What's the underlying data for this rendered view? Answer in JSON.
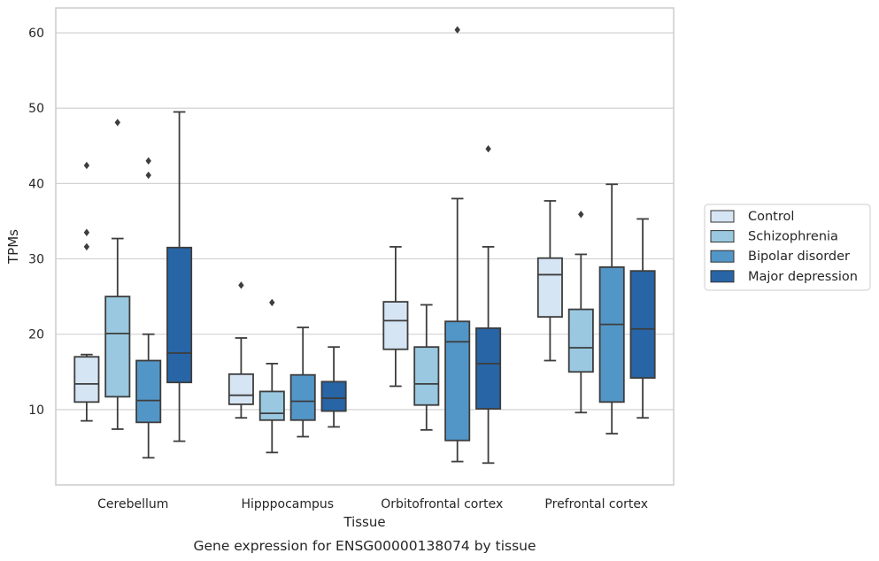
{
  "chart_data": {
    "type": "box",
    "xlabel": "Tissue",
    "ylabel": "TPMs",
    "caption": "Gene expression for ENSG00000138074 by tissue",
    "ylim": [
      0,
      63.3
    ],
    "yticks": [
      10,
      20,
      30,
      40,
      50,
      60
    ],
    "grid": "horizontal",
    "legend_position": "right",
    "categories": [
      "Cerebellum",
      "Hipppocampus",
      "Orbitofrontal cortex",
      "Prefrontal cortex"
    ],
    "series": [
      {
        "name": "Control",
        "color": "#d6e5f4",
        "boxes": [
          {
            "whisker_low": 8.5,
            "q1": 11.0,
            "median": 13.4,
            "q3": 17.0,
            "whisker_high": 17.3,
            "outliers": [
              31.6,
              33.5,
              42.4
            ]
          },
          {
            "whisker_low": 8.9,
            "q1": 10.7,
            "median": 11.9,
            "q3": 14.7,
            "whisker_high": 19.5,
            "outliers": [
              26.5
            ]
          },
          {
            "whisker_low": 13.1,
            "q1": 18.0,
            "median": 21.8,
            "q3": 24.3,
            "whisker_high": 31.6,
            "outliers": []
          },
          {
            "whisker_low": 16.5,
            "q1": 22.3,
            "median": 27.9,
            "q3": 30.1,
            "whisker_high": 37.7,
            "outliers": []
          }
        ]
      },
      {
        "name": "Schizophrenia",
        "color": "#9ac8e0",
        "boxes": [
          {
            "whisker_low": 7.4,
            "q1": 11.7,
            "median": 20.1,
            "q3": 25.0,
            "whisker_high": 32.7,
            "outliers": [
              48.1
            ]
          },
          {
            "whisker_low": 4.3,
            "q1": 8.6,
            "median": 9.5,
            "q3": 12.4,
            "whisker_high": 16.1,
            "outliers": [
              24.2
            ]
          },
          {
            "whisker_low": 7.3,
            "q1": 10.6,
            "median": 13.4,
            "q3": 18.3,
            "whisker_high": 23.9,
            "outliers": []
          },
          {
            "whisker_low": 9.6,
            "q1": 15.0,
            "median": 18.2,
            "q3": 23.3,
            "whisker_high": 30.6,
            "outliers": [
              35.9
            ]
          }
        ]
      },
      {
        "name": "Bipolar disorder",
        "color": "#5296c7",
        "boxes": [
          {
            "whisker_low": 3.6,
            "q1": 8.3,
            "median": 11.2,
            "q3": 16.5,
            "whisker_high": 20.0,
            "outliers": [
              41.1,
              43.0
            ]
          },
          {
            "whisker_low": 6.4,
            "q1": 8.6,
            "median": 11.1,
            "q3": 14.6,
            "whisker_high": 20.9,
            "outliers": []
          },
          {
            "whisker_low": 3.1,
            "q1": 5.9,
            "median": 19.0,
            "q3": 21.7,
            "whisker_high": 38.0,
            "outliers": [
              60.4
            ]
          },
          {
            "whisker_low": 6.8,
            "q1": 11.0,
            "median": 21.3,
            "q3": 28.9,
            "whisker_high": 39.9,
            "outliers": []
          }
        ]
      },
      {
        "name": "Major depression",
        "color": "#2765a7",
        "boxes": [
          {
            "whisker_low": 5.8,
            "q1": 13.6,
            "median": 17.5,
            "q3": 31.5,
            "whisker_high": 49.5,
            "outliers": []
          },
          {
            "whisker_low": 7.7,
            "q1": 9.8,
            "median": 11.5,
            "q3": 13.7,
            "whisker_high": 18.3,
            "outliers": []
          },
          {
            "whisker_low": 2.9,
            "q1": 10.1,
            "median": 16.1,
            "q3": 20.8,
            "whisker_high": 31.6,
            "outliers": [
              44.6
            ]
          },
          {
            "whisker_low": 8.9,
            "q1": 14.2,
            "median": 20.7,
            "q3": 28.4,
            "whisker_high": 35.3,
            "outliers": []
          }
        ]
      }
    ]
  }
}
